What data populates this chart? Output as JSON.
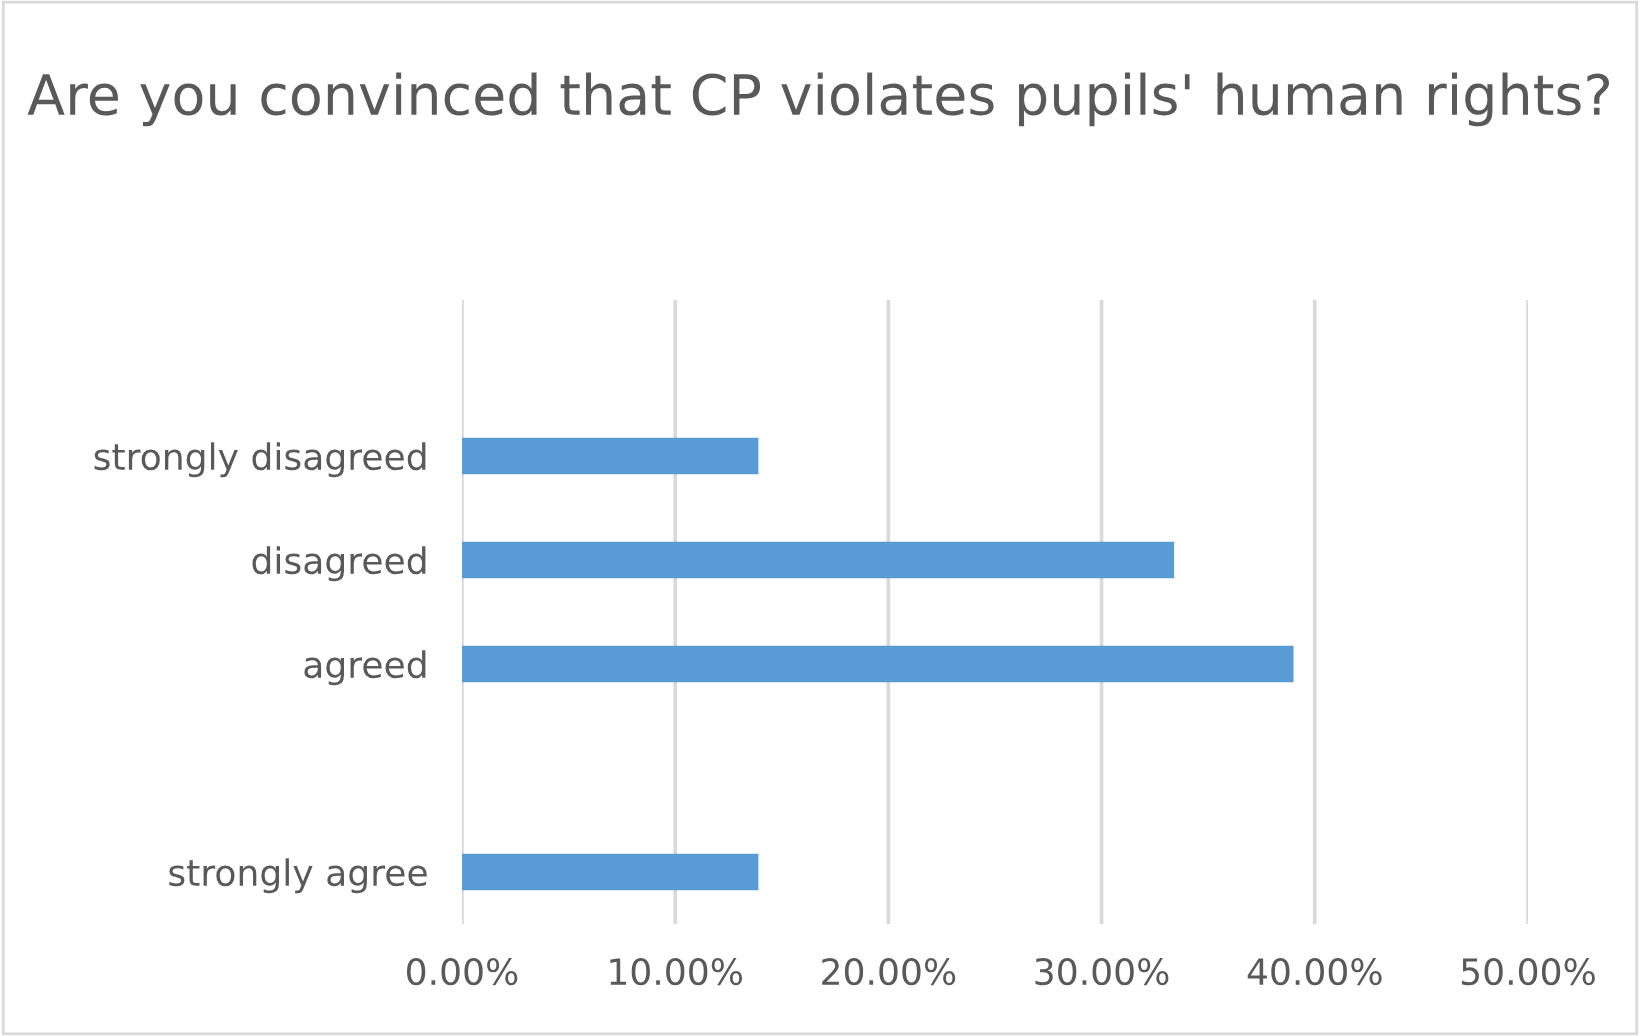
{
  "chart_data": {
    "type": "bar",
    "orientation": "horizontal",
    "title": "Are you convinced that CP violates pupils' human rights?",
    "categories": [
      null,
      "strongly disagreed",
      "disagreed",
      "agreed",
      null,
      "strongly agree"
    ],
    "values": [
      null,
      13.9,
      33.4,
      39.0,
      null,
      13.9
    ],
    "color": "#5b9bd5",
    "xlim": [
      0,
      50
    ],
    "xticks": [
      {
        "value": 0,
        "label": "0.00%"
      },
      {
        "value": 10,
        "label": "10.00%"
      },
      {
        "value": 20,
        "label": "20.00%"
      },
      {
        "value": 30,
        "label": "30.00%"
      },
      {
        "value": 40,
        "label": "40.00%"
      },
      {
        "value": 50,
        "label": "50.00%"
      }
    ],
    "grid": "x"
  }
}
